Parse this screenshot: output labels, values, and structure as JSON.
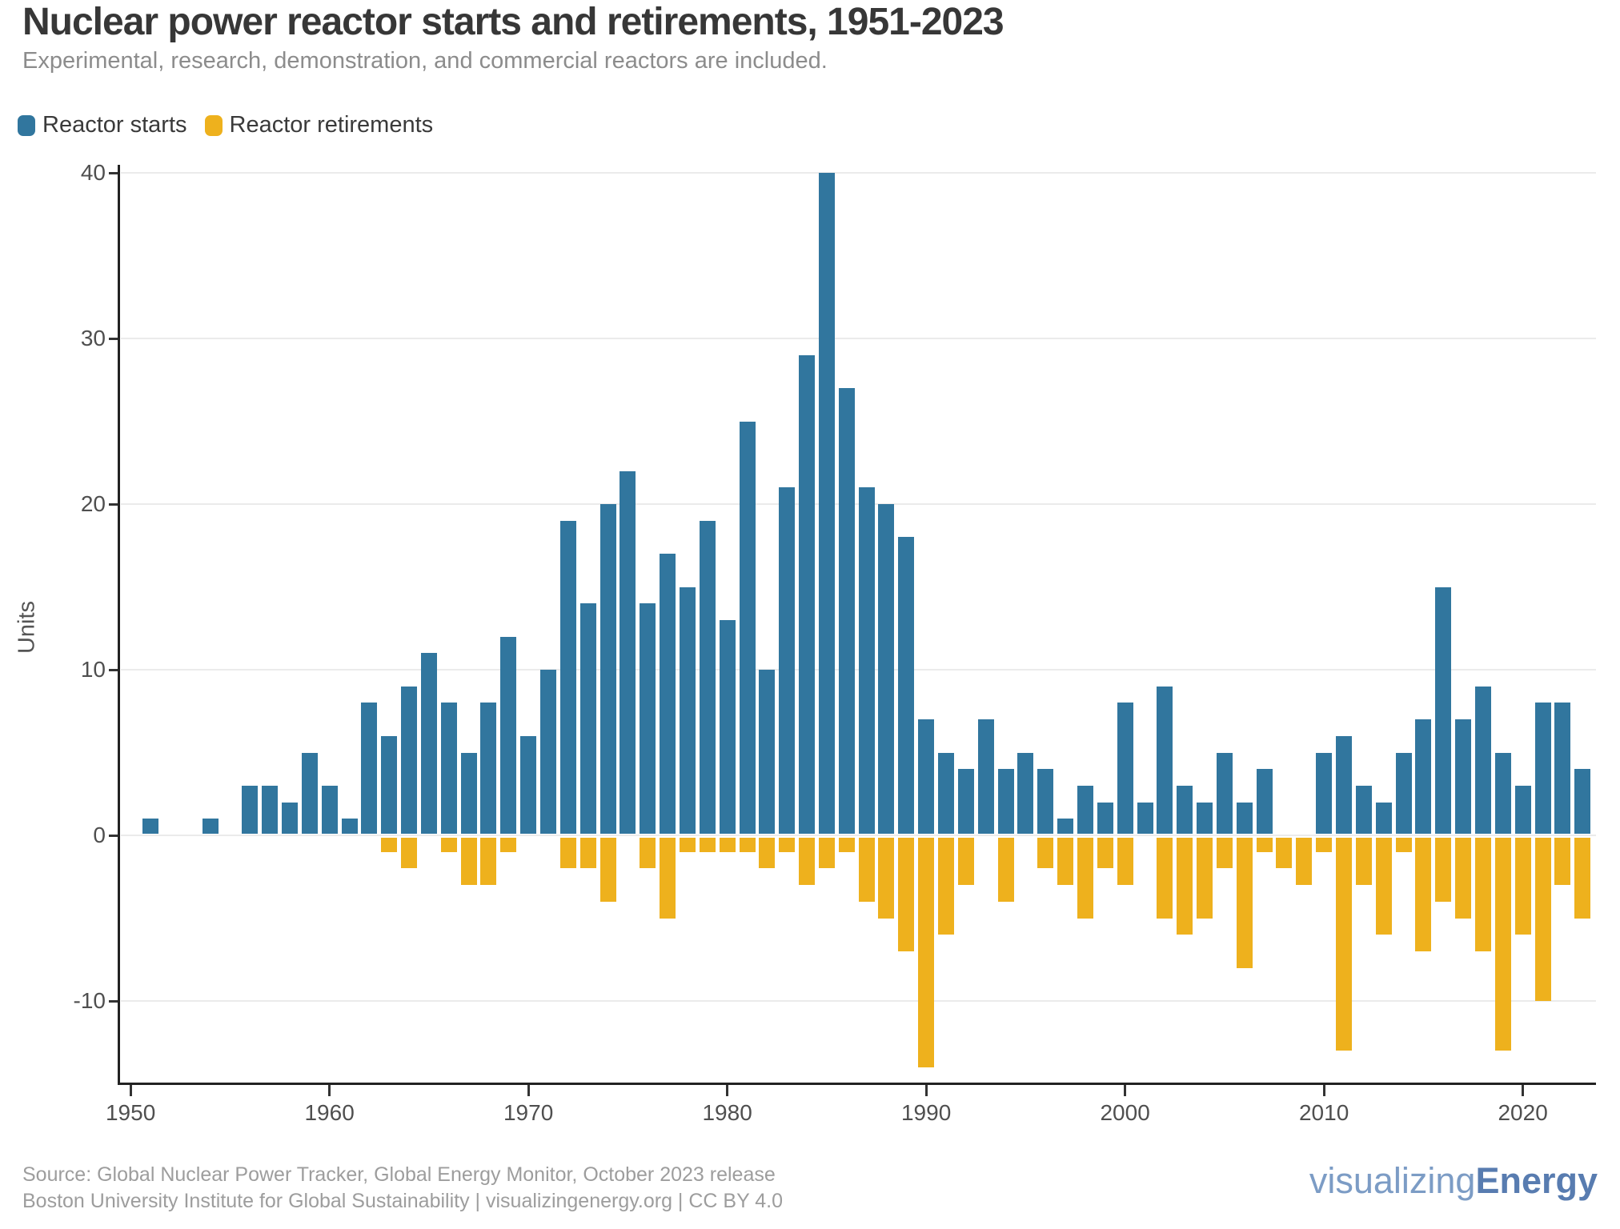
{
  "header": {
    "title": "Nuclear power reactor starts and retirements, 1951-2023",
    "subtitle": "Experimental, research, demonstration, and commercial reactors are included."
  },
  "legend": {
    "items": [
      {
        "label": "Reactor starts",
        "color": "#31769e"
      },
      {
        "label": "Reactor retirements",
        "color": "#eeb11d"
      }
    ]
  },
  "chart_data": {
    "type": "bar",
    "title": "Nuclear power reactor starts and retirements, 1951-2023",
    "xlabel": "",
    "ylabel": "Units",
    "grid": "horizontal",
    "legend_position": "top-left",
    "x_ticks": [
      1950,
      1960,
      1970,
      1980,
      1990,
      2000,
      2010,
      2020
    ],
    "y_ticks": [
      40,
      30,
      20,
      10,
      0,
      -10
    ],
    "ylim": [
      -15,
      40
    ],
    "years": [
      1951,
      1952,
      1953,
      1954,
      1955,
      1956,
      1957,
      1958,
      1959,
      1960,
      1961,
      1962,
      1963,
      1964,
      1965,
      1966,
      1967,
      1968,
      1969,
      1970,
      1971,
      1972,
      1973,
      1974,
      1975,
      1976,
      1977,
      1978,
      1979,
      1980,
      1981,
      1982,
      1983,
      1984,
      1985,
      1986,
      1987,
      1988,
      1989,
      1990,
      1991,
      1992,
      1993,
      1994,
      1995,
      1996,
      1997,
      1998,
      1999,
      2000,
      2001,
      2002,
      2003,
      2004,
      2005,
      2006,
      2007,
      2008,
      2009,
      2010,
      2011,
      2012,
      2013,
      2014,
      2015,
      2016,
      2017,
      2018,
      2019,
      2020,
      2021,
      2022,
      2023
    ],
    "series": [
      {
        "name": "Reactor starts",
        "color": "#31769e",
        "values": [
          1,
          0,
          0,
          1,
          0,
          3,
          3,
          2,
          5,
          3,
          1,
          8,
          6,
          9,
          11,
          8,
          5,
          8,
          12,
          6,
          10,
          19,
          14,
          20,
          22,
          14,
          17,
          15,
          19,
          13,
          25,
          10,
          21,
          29,
          40,
          27,
          21,
          20,
          18,
          7,
          5,
          4,
          7,
          4,
          5,
          4,
          1,
          3,
          2,
          8,
          2,
          9,
          3,
          2,
          5,
          2,
          4,
          0,
          0,
          5,
          6,
          3,
          2,
          5,
          7,
          15,
          7,
          9,
          5,
          3,
          8,
          8,
          4
        ]
      },
      {
        "name": "Reactor retirements",
        "color": "#eeb11d",
        "values": [
          0,
          0,
          0,
          0,
          0,
          0,
          0,
          0,
          0,
          0,
          0,
          0,
          -1,
          -2,
          0,
          -1,
          -3,
          -3,
          -1,
          0,
          0,
          -2,
          -2,
          -4,
          0,
          -2,
          -5,
          -1,
          -1,
          -1,
          -1,
          -2,
          -1,
          -3,
          -2,
          -1,
          -4,
          -5,
          -7,
          -14,
          -6,
          -3,
          0,
          -4,
          0,
          -2,
          -3,
          -5,
          -2,
          -3,
          0,
          -5,
          -6,
          -5,
          -2,
          -8,
          -1,
          -2,
          -3,
          -1,
          -13,
          -3,
          -6,
          -1,
          -7,
          -4,
          -5,
          -7,
          -13,
          -6,
          -10,
          -3,
          -5
        ]
      }
    ]
  },
  "footer": {
    "line1": "Source: Global Nuclear Power Tracker, Global Energy Monitor, October 2023 release",
    "line2": "Boston University Institute for Global Sustainability | visualizingenergy.org | CC BY 4.0"
  },
  "logo": {
    "light": "visualizing",
    "bold": "Energy"
  }
}
